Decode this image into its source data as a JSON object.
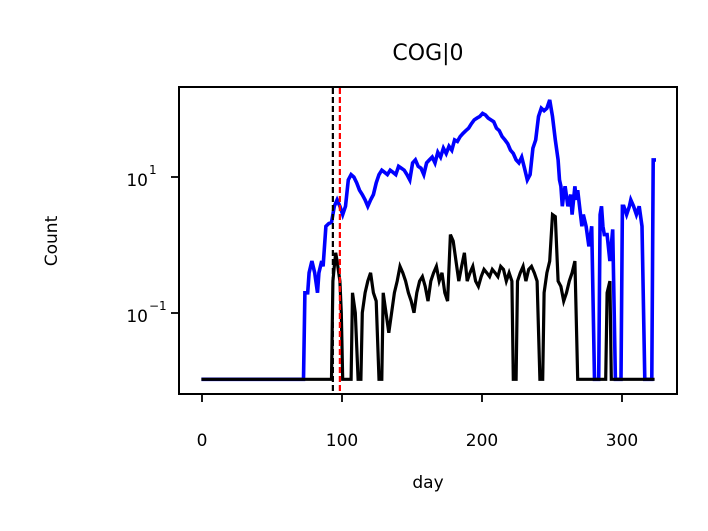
{
  "chart_data": {
    "type": "line",
    "title": "COG|0",
    "xlabel": "day",
    "ylabel": "Count",
    "xlim": [
      -16,
      340
    ],
    "ylim": [
      0.006,
      250
    ],
    "yscale": "log",
    "grid": false,
    "x_ticks": [
      0,
      100,
      200,
      300
    ],
    "x_tick_labels": [
      "0",
      "100",
      "200",
      "300"
    ],
    "y_ticks": [
      0.1,
      10
    ],
    "y_tick_labels": [
      {
        "base": "10",
        "exp": "−1"
      },
      {
        "base": "10",
        "exp": "1"
      }
    ],
    "vlines": [
      {
        "x": 94,
        "color": "#000000",
        "style": "dashed"
      },
      {
        "x": 99,
        "color": "#ff0000",
        "style": "dashed"
      }
    ],
    "series": [
      {
        "color": "#0000ff",
        "points": [
          [
            0,
            0.01
          ],
          [
            73,
            0.01
          ],
          [
            74,
            0.2
          ],
          [
            76,
            0.2
          ],
          [
            77,
            0.4
          ],
          [
            79,
            0.6
          ],
          [
            81,
            0.4
          ],
          [
            83,
            0.2
          ],
          [
            84,
            0.4
          ],
          [
            86,
            0.6
          ],
          [
            87,
            0.5
          ],
          [
            89,
            2
          ],
          [
            91,
            2.2
          ],
          [
            93,
            2.3
          ],
          [
            94,
            3
          ],
          [
            95,
            4
          ],
          [
            97,
            5
          ],
          [
            99,
            4
          ],
          [
            101,
            3
          ],
          [
            103,
            4
          ],
          [
            105,
            10
          ],
          [
            107,
            12
          ],
          [
            109,
            11
          ],
          [
            111,
            9
          ],
          [
            113,
            7
          ],
          [
            115,
            6
          ],
          [
            117,
            5
          ],
          [
            119,
            4
          ],
          [
            121,
            5
          ],
          [
            123,
            6
          ],
          [
            125,
            9
          ],
          [
            127,
            12
          ],
          [
            129,
            14
          ],
          [
            131,
            13
          ],
          [
            133,
            12
          ],
          [
            135,
            14
          ],
          [
            137,
            13
          ],
          [
            139,
            12
          ],
          [
            141,
            16
          ],
          [
            143,
            15
          ],
          [
            145,
            14
          ],
          [
            147,
            12
          ],
          [
            149,
            10
          ],
          [
            151,
            18
          ],
          [
            153,
            20
          ],
          [
            155,
            16
          ],
          [
            157,
            15
          ],
          [
            159,
            12
          ],
          [
            161,
            18
          ],
          [
            163,
            20
          ],
          [
            165,
            22
          ],
          [
            167,
            18
          ],
          [
            169,
            26
          ],
          [
            171,
            22
          ],
          [
            173,
            30
          ],
          [
            175,
            25
          ],
          [
            177,
            32
          ],
          [
            179,
            28
          ],
          [
            181,
            40
          ],
          [
            183,
            38
          ],
          [
            185,
            45
          ],
          [
            187,
            50
          ],
          [
            189,
            55
          ],
          [
            191,
            60
          ],
          [
            193,
            70
          ],
          [
            195,
            80
          ],
          [
            197,
            85
          ],
          [
            199,
            90
          ],
          [
            201,
            100
          ],
          [
            203,
            95
          ],
          [
            205,
            85
          ],
          [
            207,
            80
          ],
          [
            209,
            75
          ],
          [
            211,
            60
          ],
          [
            213,
            55
          ],
          [
            215,
            45
          ],
          [
            217,
            40
          ],
          [
            219,
            35
          ],
          [
            221,
            28
          ],
          [
            223,
            25
          ],
          [
            225,
            20
          ],
          [
            227,
            18
          ],
          [
            229,
            22
          ],
          [
            231,
            15
          ],
          [
            233,
            10
          ],
          [
            235,
            12
          ],
          [
            237,
            30
          ],
          [
            239,
            40
          ],
          [
            241,
            90
          ],
          [
            243,
            120
          ],
          [
            245,
            110
          ],
          [
            247,
            120
          ],
          [
            249,
            160
          ],
          [
            251,
            90
          ],
          [
            253,
            40
          ],
          [
            255,
            20
          ],
          [
            256,
            10
          ],
          [
            257,
            8
          ],
          [
            258,
            4
          ],
          [
            259,
            6
          ],
          [
            260,
            8
          ],
          [
            262,
            4
          ],
          [
            264,
            6
          ],
          [
            265,
            3
          ],
          [
            267,
            8
          ],
          [
            268,
            5
          ],
          [
            269,
            7
          ],
          [
            271,
            3
          ],
          [
            272,
            2
          ],
          [
            273,
            3
          ],
          [
            275,
            2
          ],
          [
            277,
            1
          ],
          [
            279,
            2
          ],
          [
            281,
            0.01
          ],
          [
            284,
            0.01
          ],
          [
            285,
            3
          ],
          [
            286,
            4
          ],
          [
            287,
            2
          ],
          [
            288,
            1.5
          ],
          [
            290,
            1.5
          ],
          [
            292,
            0.6
          ],
          [
            294,
            1.8
          ],
          [
            296,
            0.01
          ],
          [
            300,
            0.01
          ],
          [
            301,
            4
          ],
          [
            302,
            4
          ],
          [
            304,
            3
          ],
          [
            306,
            4
          ],
          [
            307,
            5
          ],
          [
            309,
            4
          ],
          [
            311,
            3
          ],
          [
            313,
            4
          ],
          [
            315,
            2
          ],
          [
            317,
            0.01
          ],
          [
            322,
            0.01
          ],
          [
            323,
            20
          ],
          [
            324,
            20
          ],
          [
            325,
            20
          ]
        ]
      },
      {
        "color": "#000000",
        "points": [
          [
            0,
            0.01
          ],
          [
            93,
            0.01
          ],
          [
            94,
            0.3
          ],
          [
            95,
            0.5
          ],
          [
            96,
            0.8
          ],
          [
            97,
            0.6
          ],
          [
            99,
            0.3
          ],
          [
            100,
            0.1
          ],
          [
            101,
            0.01
          ],
          [
            107,
            0.01
          ],
          [
            108,
            0.2
          ],
          [
            110,
            0.1
          ],
          [
            112,
            0.01
          ],
          [
            114,
            0.01
          ],
          [
            115,
            0.1
          ],
          [
            117,
            0.2
          ],
          [
            119,
            0.3
          ],
          [
            121,
            0.4
          ],
          [
            123,
            0.2
          ],
          [
            125,
            0.15
          ],
          [
            127,
            0.01
          ],
          [
            129,
            0.01
          ],
          [
            130,
            0.2
          ],
          [
            132,
            0.1
          ],
          [
            134,
            0.05
          ],
          [
            136,
            0.1
          ],
          [
            138,
            0.2
          ],
          [
            140,
            0.3
          ],
          [
            142,
            0.5
          ],
          [
            144,
            0.4
          ],
          [
            146,
            0.3
          ],
          [
            148,
            0.2
          ],
          [
            150,
            0.15
          ],
          [
            152,
            0.1
          ],
          [
            154,
            0.2
          ],
          [
            156,
            0.3
          ],
          [
            158,
            0.35
          ],
          [
            160,
            0.25
          ],
          [
            162,
            0.15
          ],
          [
            164,
            0.3
          ],
          [
            166,
            0.4
          ],
          [
            168,
            0.5
          ],
          [
            170,
            0.3
          ],
          [
            172,
            0.4
          ],
          [
            174,
            0.2
          ],
          [
            176,
            0.15
          ],
          [
            178,
            1.5
          ],
          [
            180,
            1.2
          ],
          [
            182,
            0.6
          ],
          [
            184,
            0.3
          ],
          [
            186,
            0.5
          ],
          [
            188,
            0.8
          ],
          [
            190,
            0.3
          ],
          [
            192,
            0.4
          ],
          [
            194,
            0.5
          ],
          [
            196,
            0.3
          ],
          [
            198,
            0.25
          ],
          [
            200,
            0.35
          ],
          [
            202,
            0.45
          ],
          [
            204,
            0.4
          ],
          [
            206,
            0.35
          ],
          [
            208,
            0.45
          ],
          [
            210,
            0.4
          ],
          [
            212,
            0.35
          ],
          [
            214,
            0.5
          ],
          [
            216,
            0.45
          ],
          [
            218,
            0.3
          ],
          [
            220,
            0.4
          ],
          [
            222,
            0.3
          ],
          [
            223,
            0.01
          ],
          [
            225,
            0.01
          ],
          [
            226,
            0.3
          ],
          [
            228,
            0.4
          ],
          [
            230,
            0.5
          ],
          [
            232,
            0.3
          ],
          [
            234,
            0.45
          ],
          [
            236,
            0.5
          ],
          [
            238,
            0.4
          ],
          [
            240,
            0.3
          ],
          [
            242,
            0.01
          ],
          [
            244,
            0.01
          ],
          [
            245,
            0.2
          ],
          [
            247,
            0.4
          ],
          [
            249,
            0.6
          ],
          [
            251,
            3
          ],
          [
            253,
            2.8
          ],
          [
            255,
            0.3
          ],
          [
            257,
            0.25
          ],
          [
            259,
            0.15
          ],
          [
            261,
            0.2
          ],
          [
            263,
            0.3
          ],
          [
            265,
            0.4
          ],
          [
            267,
            0.6
          ],
          [
            269,
            0.01
          ],
          [
            289,
            0.01
          ],
          [
            290,
            0.2
          ],
          [
            292,
            0.3
          ],
          [
            293,
            0.01
          ],
          [
            324,
            0.01
          ]
        ]
      }
    ]
  }
}
